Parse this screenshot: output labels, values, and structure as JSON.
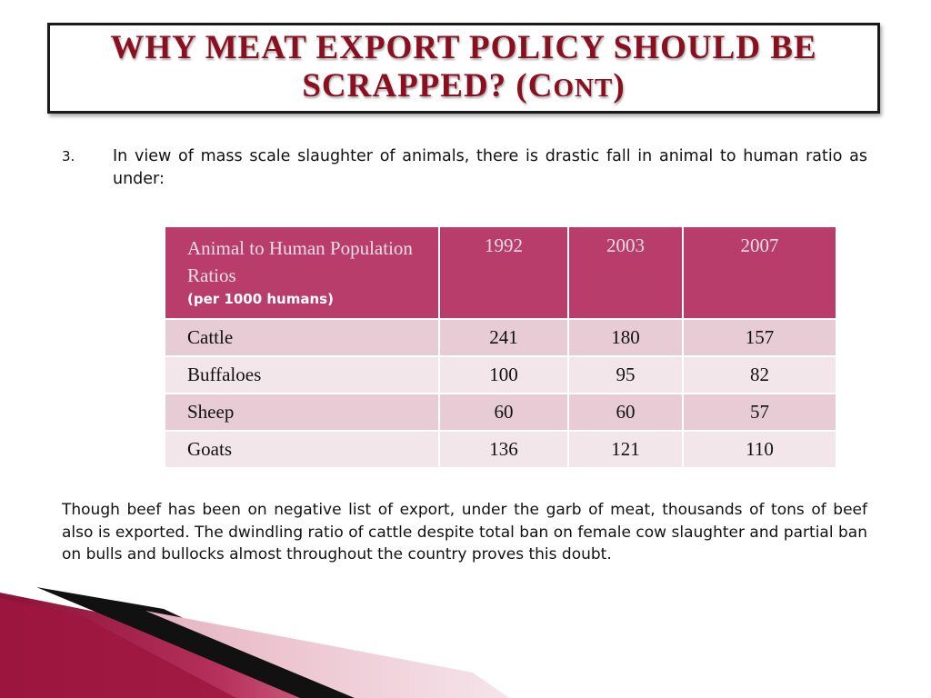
{
  "slide": {
    "title_line1": "WHY MEAT EXPORT POLICY SHOULD BE",
    "title_line2_caps": "SCRAPPED? (C",
    "title_line2_small": "ONT",
    "title_line2_end": ")"
  },
  "point3": {
    "number": "3.",
    "text": "In view of mass scale slaughter of animals, there is drastic fall in animal to human ratio as under:"
  },
  "table": {
    "header": {
      "label": "Animal to Human Population Ratios",
      "sublabel": "(per 1000 humans)",
      "years": [
        "1992",
        "2003",
        "2007"
      ]
    },
    "rows": [
      {
        "label": "Cattle",
        "values": [
          "241",
          "180",
          "157"
        ]
      },
      {
        "label": "Buffaloes",
        "values": [
          "100",
          "95",
          "82"
        ]
      },
      {
        "label": "Sheep",
        "values": [
          "60",
          "60",
          "57"
        ]
      },
      {
        "label": "Goats",
        "values": [
          "136",
          "121",
          "110"
        ]
      }
    ]
  },
  "paragraph": "Though beef has been on negative list of export, under the garb of meat, thousands of tons of beef also is exported. The dwindling ratio of cattle despite total ban on female cow slaughter and partial ban on bulls and bullocks almost throughout the country proves this doubt.",
  "colors": {
    "title": "#8a1020",
    "table_header": "#b83d6a",
    "row_odd": "#e7ccd5",
    "row_even": "#f3e6eb",
    "accent_deco": "#9e1640"
  }
}
